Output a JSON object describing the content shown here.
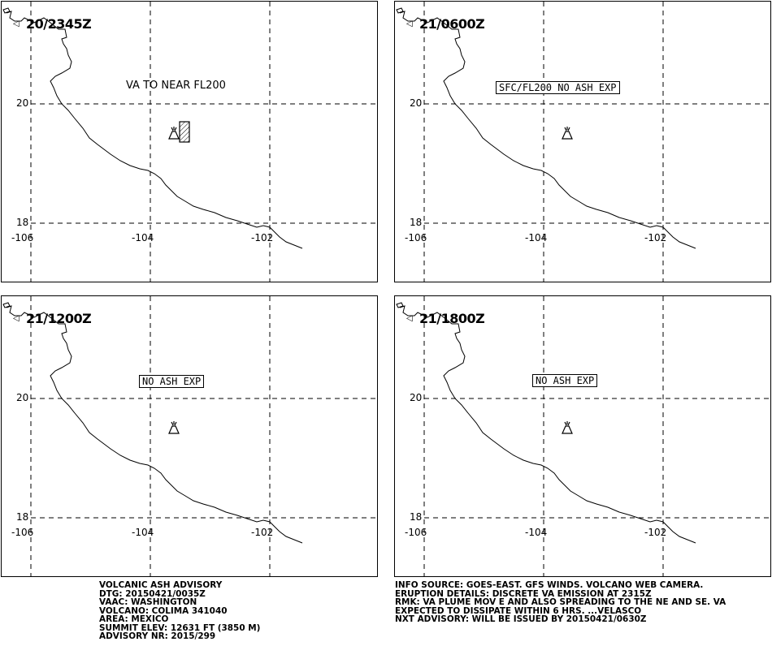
{
  "panels": [
    {
      "time": "20/2345Z",
      "label": "VA TO NEAR FL200",
      "label_boxed": false,
      "ash_area": true
    },
    {
      "time": "21/0600Z",
      "label": "SFC/FL200 NO ASH EXP",
      "label_boxed": true,
      "ash_area": false
    },
    {
      "time": "21/1200Z",
      "label": "NO ASH EXP",
      "label_boxed": true,
      "ash_area": false
    },
    {
      "time": "21/1800Z",
      "label": "NO ASH EXP",
      "label_boxed": true,
      "ash_area": false
    }
  ],
  "map": {
    "lat_labels": [
      "20",
      "18"
    ],
    "lon_labels": [
      "-106",
      "-104",
      "-102"
    ],
    "coastline_color": "#000000",
    "grid_style": "dashed"
  },
  "advisory_left": [
    "VOLCANIC ASH ADVISORY",
    "DTG: 20150421/0035Z",
    "VAAC: WASHINGTON",
    "VOLCANO: COLIMA 341040",
    "AREA: MEXICO",
    "SUMMIT ELEV: 12631 FT (3850 M)",
    "ADVISORY NR: 2015/299"
  ],
  "advisory_right": [
    "INFO SOURCE: GOES-EAST. GFS WINDS. VOLCANO WEB CAMERA.",
    "ERUPTION DETAILS: DISCRETE VA EMISSION AT 2315Z",
    "RMK: VA PLUME MOV E AND ALSO SPREADING TO THE NE AND SE. VA",
    "EXPECTED TO DISSIPATE WITHIN 6 HRS. ...VELASCO",
    "NXT ADVISORY: WILL BE ISSUED BY 20150421/0630Z"
  ]
}
